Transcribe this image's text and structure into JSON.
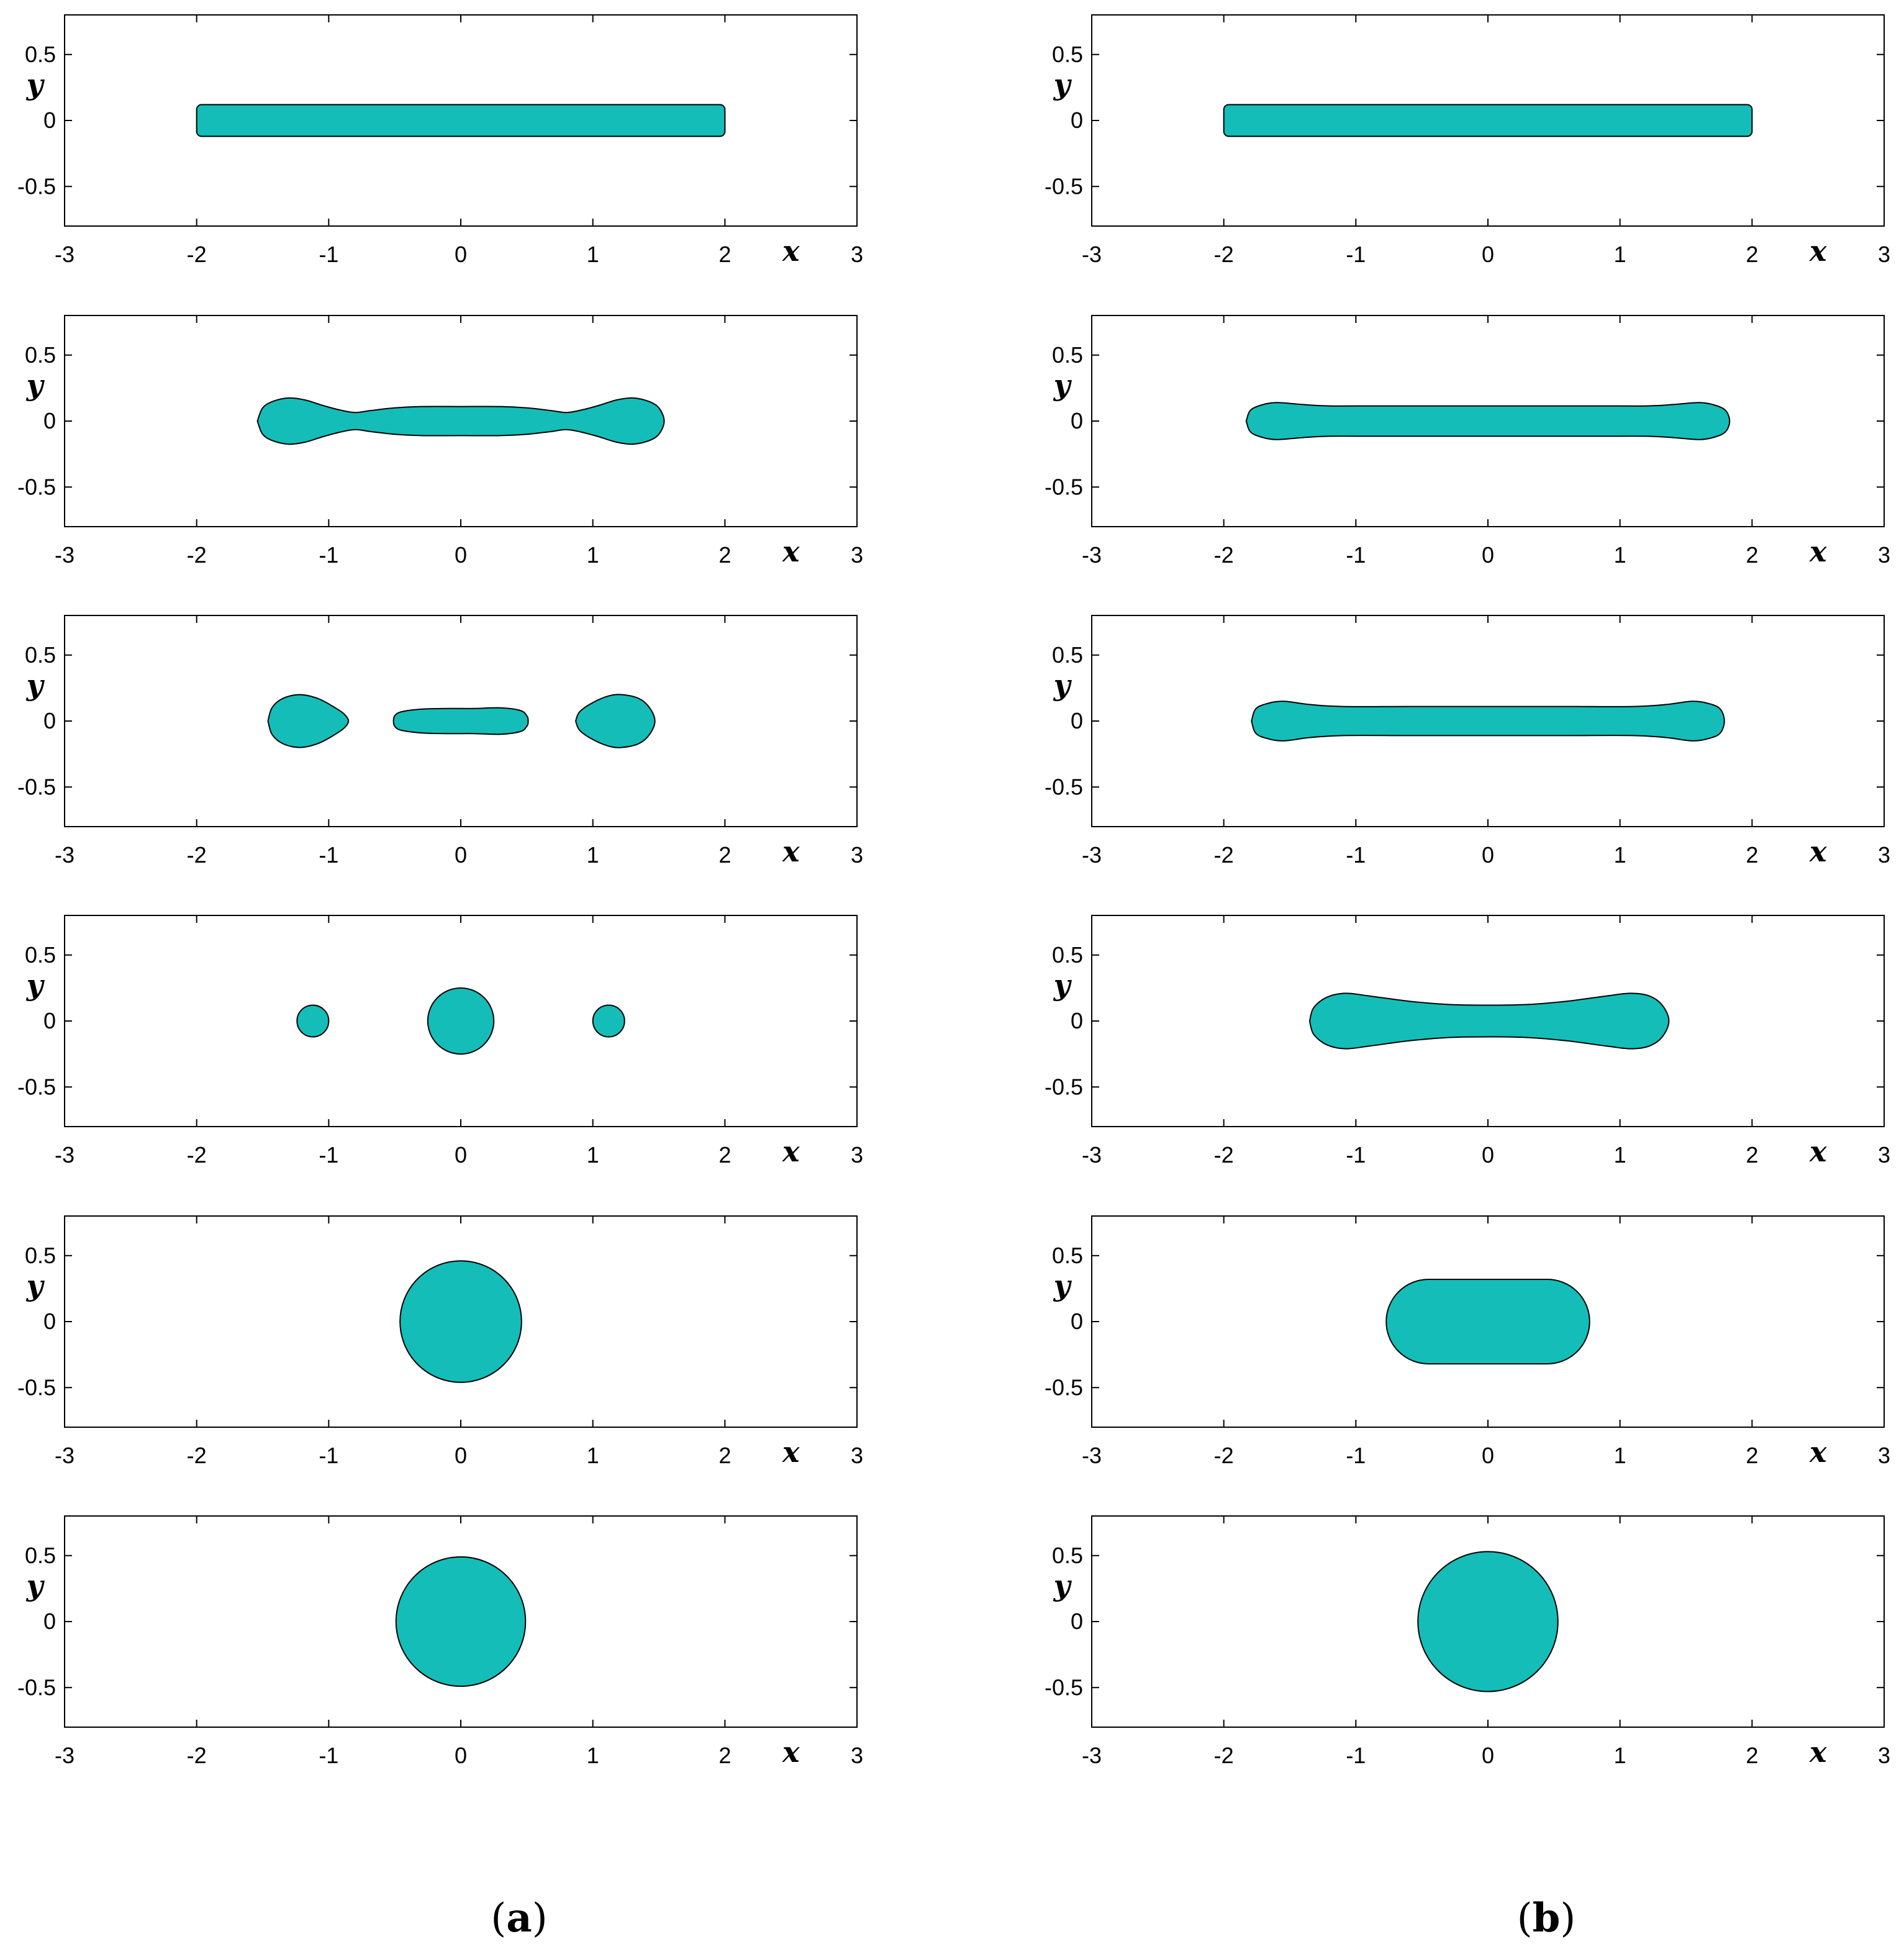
{
  "figure": {
    "columns": [
      {
        "label": "a"
      },
      {
        "label": "b"
      }
    ]
  },
  "colors": {
    "fill": "#14BDB8",
    "edge": "#000000"
  },
  "chart_data": [
    {
      "type": "shape-plot",
      "panel": "a-1",
      "xlabel": "x",
      "ylabel": "y",
      "xlim": [
        -3,
        3
      ],
      "ylim": [
        -0.8,
        0.8
      ],
      "xticks": [
        "-3",
        "-2",
        "-1",
        "0",
        "1",
        "2",
        "3"
      ],
      "yticks": [
        "0.5",
        "0",
        "-0.5"
      ],
      "shapes": [
        {
          "kind": "rounded-rect",
          "x": [
            -2,
            2
          ],
          "y": [
            -0.12,
            0.12
          ]
        }
      ]
    },
    {
      "type": "shape-plot",
      "panel": "a-2",
      "xlabel": "x",
      "ylabel": "y",
      "xlim": [
        -3,
        3
      ],
      "ylim": [
        -0.8,
        0.8
      ],
      "xticks": [
        "-3",
        "-2",
        "-1",
        "0",
        "1",
        "2",
        "3"
      ],
      "yticks": [
        "0.5",
        "0",
        "-0.5"
      ],
      "shapes": [
        {
          "kind": "profile",
          "x0": -1.54,
          "x1": 1.54,
          "profile": [
            [
              -1.54,
              0
            ],
            [
              -1.5,
              0.1
            ],
            [
              -1.42,
              0.15
            ],
            [
              -1.3,
              0.175
            ],
            [
              -1.18,
              0.16
            ],
            [
              -1.05,
              0.12
            ],
            [
              -0.92,
              0.085
            ],
            [
              -0.8,
              0.065
            ],
            [
              -0.68,
              0.08
            ],
            [
              -0.5,
              0.1
            ],
            [
              -0.3,
              0.11
            ],
            [
              0,
              0.11
            ],
            [
              0.3,
              0.11
            ],
            [
              0.5,
              0.1
            ],
            [
              0.68,
              0.08
            ],
            [
              0.8,
              0.065
            ],
            [
              0.92,
              0.085
            ],
            [
              1.05,
              0.12
            ],
            [
              1.18,
              0.16
            ],
            [
              1.3,
              0.175
            ],
            [
              1.42,
              0.15
            ],
            [
              1.5,
              0.1
            ],
            [
              1.54,
              0
            ]
          ]
        }
      ]
    },
    {
      "type": "shape-plot",
      "panel": "a-3",
      "xlabel": "x",
      "ylabel": "y",
      "xlim": [
        -3,
        3
      ],
      "ylim": [
        -0.8,
        0.8
      ],
      "xticks": [
        "-3",
        "-2",
        "-1",
        "0",
        "1",
        "2",
        "3"
      ],
      "yticks": [
        "0.5",
        "0",
        "-0.5"
      ],
      "shapes": [
        {
          "kind": "profile",
          "x0": -1.46,
          "x1": -0.85,
          "profile": [
            [
              -1.46,
              0
            ],
            [
              -1.43,
              0.1
            ],
            [
              -1.35,
              0.17
            ],
            [
              -1.22,
              0.2
            ],
            [
              -1.08,
              0.17
            ],
            [
              -0.95,
              0.1
            ],
            [
              -0.88,
              0.05
            ],
            [
              -0.85,
              0.0
            ]
          ]
        },
        {
          "kind": "profile",
          "x0": -0.51,
          "x1": 0.51,
          "profile": [
            [
              -0.51,
              0
            ],
            [
              -0.5,
              0.04
            ],
            [
              -0.45,
              0.07
            ],
            [
              -0.3,
              0.09
            ],
            [
              -0.1,
              0.095
            ],
            [
              0.1,
              0.095
            ],
            [
              0.3,
              0.1
            ],
            [
              0.45,
              0.08
            ],
            [
              0.5,
              0.04
            ],
            [
              0.51,
              0
            ]
          ]
        },
        {
          "kind": "profile",
          "x0": 0.87,
          "x1": 1.47,
          "profile": [
            [
              0.87,
              0
            ],
            [
              0.9,
              0.07
            ],
            [
              1.0,
              0.14
            ],
            [
              1.12,
              0.19
            ],
            [
              1.22,
              0.2
            ],
            [
              1.35,
              0.17
            ],
            [
              1.43,
              0.1
            ],
            [
              1.47,
              0
            ]
          ]
        }
      ]
    },
    {
      "type": "shape-plot",
      "panel": "a-4",
      "xlabel": "x",
      "ylabel": "y",
      "xlim": [
        -3,
        3
      ],
      "ylim": [
        -0.8,
        0.8
      ],
      "xticks": [
        "-3",
        "-2",
        "-1",
        "0",
        "1",
        "2",
        "3"
      ],
      "yticks": [
        "0.5",
        "0",
        "-0.5"
      ],
      "shapes": [
        {
          "kind": "circle",
          "cx": -1.12,
          "cy": 0,
          "r": 0.12
        },
        {
          "kind": "circle",
          "cx": 0,
          "cy": 0,
          "r": 0.25
        },
        {
          "kind": "circle",
          "cx": 1.12,
          "cy": 0,
          "r": 0.12
        }
      ]
    },
    {
      "type": "shape-plot",
      "panel": "a-5",
      "xlabel": "x",
      "ylabel": "y",
      "xlim": [
        -3,
        3
      ],
      "ylim": [
        -0.8,
        0.8
      ],
      "xticks": [
        "-3",
        "-2",
        "-1",
        "0",
        "1",
        "2",
        "3"
      ],
      "yticks": [
        "0.5",
        "0",
        "-0.5"
      ],
      "shapes": [
        {
          "kind": "circle",
          "cx": 0,
          "cy": 0,
          "r": 0.46
        }
      ]
    },
    {
      "type": "shape-plot",
      "panel": "a-6",
      "xlabel": "x",
      "ylabel": "y",
      "xlim": [
        -3,
        3
      ],
      "ylim": [
        -0.8,
        0.8
      ],
      "xticks": [
        "-3",
        "-2",
        "-1",
        "0",
        "1",
        "2",
        "3"
      ],
      "yticks": [
        "0.5",
        "0",
        "-0.5"
      ],
      "shapes": [
        {
          "kind": "circle",
          "cx": 0,
          "cy": 0,
          "r": 0.49
        }
      ]
    },
    {
      "type": "shape-plot",
      "panel": "b-1",
      "xlabel": "x",
      "ylabel": "y",
      "xlim": [
        -3,
        3
      ],
      "ylim": [
        -0.8,
        0.8
      ],
      "xticks": [
        "-3",
        "-2",
        "-1",
        "0",
        "1",
        "2",
        "3"
      ],
      "yticks": [
        "0.5",
        "0",
        "-0.5"
      ],
      "shapes": [
        {
          "kind": "rounded-rect",
          "x": [
            -2,
            2
          ],
          "y": [
            -0.12,
            0.12
          ]
        }
      ]
    },
    {
      "type": "shape-plot",
      "panel": "b-2",
      "xlabel": "x",
      "ylabel": "y",
      "xlim": [
        -3,
        3
      ],
      "ylim": [
        -0.8,
        0.8
      ],
      "xticks": [
        "-3",
        "-2",
        "-1",
        "0",
        "1",
        "2",
        "3"
      ],
      "yticks": [
        "0.5",
        "0",
        "-0.5"
      ],
      "shapes": [
        {
          "kind": "profile",
          "x0": -1.83,
          "x1": 1.83,
          "profile": [
            [
              -1.83,
              0
            ],
            [
              -1.8,
              0.08
            ],
            [
              -1.72,
              0.12
            ],
            [
              -1.6,
              0.14
            ],
            [
              -1.4,
              0.125
            ],
            [
              -1.2,
              0.115
            ],
            [
              -0.8,
              0.115
            ],
            [
              0,
              0.115
            ],
            [
              0.8,
              0.115
            ],
            [
              1.2,
              0.115
            ],
            [
              1.4,
              0.125
            ],
            [
              1.6,
              0.14
            ],
            [
              1.72,
              0.12
            ],
            [
              1.8,
              0.08
            ],
            [
              1.83,
              0
            ]
          ]
        }
      ]
    },
    {
      "type": "shape-plot",
      "panel": "b-3",
      "xlabel": "x",
      "ylabel": "y",
      "xlim": [
        -3,
        3
      ],
      "ylim": [
        -0.8,
        0.8
      ],
      "xticks": [
        "-3",
        "-2",
        "-1",
        "0",
        "1",
        "2",
        "3"
      ],
      "yticks": [
        "0.5",
        "0",
        "-0.5"
      ],
      "shapes": [
        {
          "kind": "profile",
          "x0": -1.79,
          "x1": 1.79,
          "profile": [
            [
              -1.79,
              0
            ],
            [
              -1.76,
              0.09
            ],
            [
              -1.68,
              0.13
            ],
            [
              -1.55,
              0.15
            ],
            [
              -1.35,
              0.125
            ],
            [
              -1.1,
              0.11
            ],
            [
              -0.6,
              0.11
            ],
            [
              0,
              0.11
            ],
            [
              0.6,
              0.11
            ],
            [
              1.1,
              0.11
            ],
            [
              1.35,
              0.125
            ],
            [
              1.55,
              0.15
            ],
            [
              1.68,
              0.13
            ],
            [
              1.76,
              0.09
            ],
            [
              1.79,
              0
            ]
          ]
        }
      ]
    },
    {
      "type": "shape-plot",
      "panel": "b-4",
      "xlabel": "x",
      "ylabel": "y",
      "xlim": [
        -3,
        3
      ],
      "ylim": [
        -0.8,
        0.8
      ],
      "xticks": [
        "-3",
        "-2",
        "-1",
        "0",
        "1",
        "2",
        "3"
      ],
      "yticks": [
        "0.5",
        "0",
        "-0.5"
      ],
      "shapes": [
        {
          "kind": "profile",
          "x0": -1.35,
          "x1": 1.37,
          "profile": [
            [
              -1.35,
              0
            ],
            [
              -1.32,
              0.1
            ],
            [
              -1.22,
              0.18
            ],
            [
              -1.08,
              0.21
            ],
            [
              -0.9,
              0.19
            ],
            [
              -0.6,
              0.15
            ],
            [
              -0.3,
              0.125
            ],
            [
              0,
              0.12
            ],
            [
              0.3,
              0.125
            ],
            [
              0.6,
              0.15
            ],
            [
              0.9,
              0.19
            ],
            [
              1.08,
              0.21
            ],
            [
              1.22,
              0.19
            ],
            [
              1.32,
              0.12
            ],
            [
              1.37,
              0
            ]
          ]
        }
      ]
    },
    {
      "type": "shape-plot",
      "panel": "b-5",
      "xlabel": "x",
      "ylabel": "y",
      "xlim": [
        -3,
        3
      ],
      "ylim": [
        -0.8,
        0.8
      ],
      "xticks": [
        "-3",
        "-2",
        "-1",
        "0",
        "1",
        "2",
        "3"
      ],
      "yticks": [
        "0.5",
        "0",
        "-0.5"
      ],
      "shapes": [
        {
          "kind": "stadium",
          "x": [
            -0.77,
            0.77
          ],
          "y": [
            -0.32,
            0.32
          ]
        }
      ]
    },
    {
      "type": "shape-plot",
      "panel": "b-6",
      "xlabel": "x",
      "ylabel": "y",
      "xlim": [
        -3,
        3
      ],
      "ylim": [
        -0.8,
        0.8
      ],
      "xticks": [
        "-3",
        "-2",
        "-1",
        "0",
        "1",
        "2",
        "3"
      ],
      "yticks": [
        "0.5",
        "0",
        "-0.5"
      ],
      "shapes": [
        {
          "kind": "circle",
          "cx": 0,
          "cy": 0,
          "r": 0.53
        }
      ]
    }
  ]
}
